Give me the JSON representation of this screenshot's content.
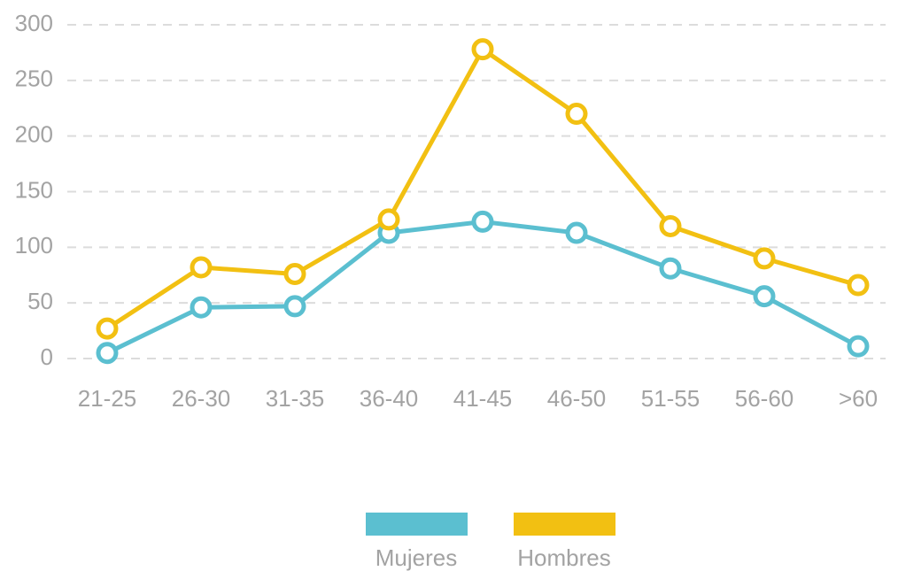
{
  "chart_data": {
    "type": "line",
    "categories": [
      "21-25",
      "26-30",
      "31-35",
      "36-40",
      "41-45",
      "46-50",
      "51-55",
      "56-60",
      ">60"
    ],
    "series": [
      {
        "name": "Mujeres",
        "color": "#5bbfd0",
        "values": [
          5,
          46,
          47,
          113,
          123,
          113,
          81,
          56,
          11
        ]
      },
      {
        "name": "Hombres",
        "color": "#f2c012",
        "values": [
          27,
          82,
          76,
          125,
          278,
          220,
          119,
          90,
          66
        ]
      }
    ],
    "ylim": [
      0,
      300
    ],
    "yticks": [
      0,
      50,
      100,
      150,
      200,
      250,
      300
    ],
    "grid": true,
    "legend": "bottom"
  }
}
